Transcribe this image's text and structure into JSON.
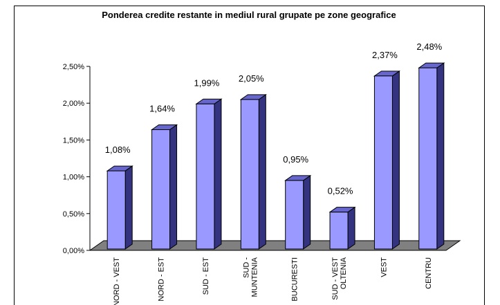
{
  "chart_data": {
    "type": "bar3d",
    "title": "Ponderea credite restante in mediul rural grupate pe zone geografice",
    "categories": [
      "NORD - VEST",
      "NORD - EST",
      "SUD - EST",
      "SUD -\nMUNTENIA",
      "BUCURESTI",
      "SUD - VEST\nOLTENIA",
      "VEST",
      "CENTRU"
    ],
    "values": [
      1.08,
      1.64,
      1.99,
      2.05,
      0.95,
      0.52,
      2.37,
      2.48
    ],
    "value_labels": [
      "1,08%",
      "1,64%",
      "1,99%",
      "2,05%",
      "0,95%",
      "0,52%",
      "2,37%",
      "2,48%"
    ],
    "color": "#9999ff",
    "ylim": [
      0,
      2.5
    ],
    "yticks": [
      {
        "value": 0,
        "label": "0,00%"
      },
      {
        "value": 0.5,
        "label": "0,50%"
      },
      {
        "value": 1,
        "label": "1,00%"
      },
      {
        "value": 1.5,
        "label": "1,50%"
      },
      {
        "value": 2,
        "label": "2,00%"
      },
      {
        "value": 2.5,
        "label": "2,50%"
      }
    ]
  }
}
